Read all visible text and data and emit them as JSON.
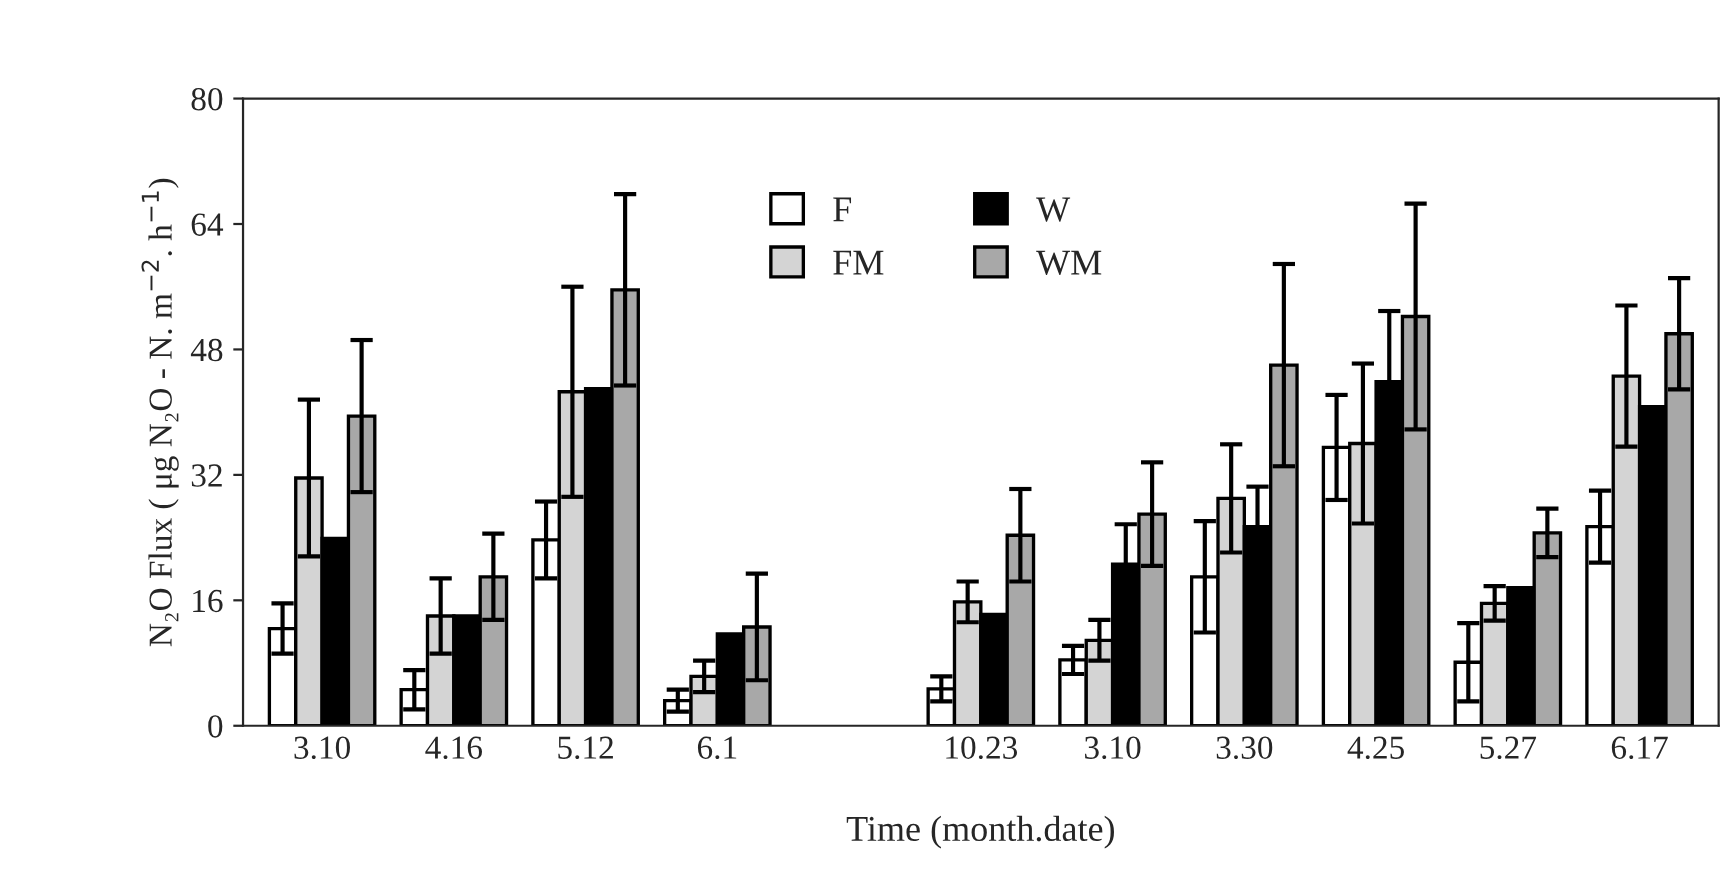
{
  "chart_data": {
    "type": "bar",
    "xlabel": "Time (month.date)",
    "ylabel": "N₂O Flux ( μg N₂O - N. m$^{−2}$. h$^{−1}$)",
    "categories": [
      "3.10",
      "4.16",
      "5.12",
      "6.1",
      null,
      "10.23",
      "3.10",
      "3.30",
      "4.25",
      "5.27",
      "6.17"
    ],
    "series": [
      {
        "name": "F",
        "color": "#ffffff",
        "values": [
          12.4,
          4.6,
          23.7,
          3.2,
          null,
          4.7,
          8.4,
          19.0,
          35.5,
          8.1,
          25.4
        ],
        "errors": [
          3.2,
          2.5,
          4.9,
          1.4,
          null,
          1.6,
          1.8,
          7.1,
          6.7,
          5.0,
          4.6
        ]
      },
      {
        "name": "FM",
        "color": "#d4d4d4",
        "values": [
          31.6,
          14.0,
          42.6,
          6.3,
          null,
          15.8,
          10.9,
          29.0,
          36.0,
          15.6,
          44.6
        ],
        "errors": [
          10.0,
          4.8,
          13.4,
          2.0,
          null,
          2.6,
          2.6,
          6.9,
          10.2,
          2.2,
          9.0
        ]
      },
      {
        "name": "W",
        "color": "#000000",
        "values": [
          23.9,
          14.0,
          43.0,
          11.7,
          null,
          14.2,
          20.6,
          25.4,
          43.9,
          17.6,
          40.7
        ],
        "errors": [
          null,
          null,
          null,
          null,
          null,
          null,
          5.1,
          5.1,
          9.0,
          null,
          null
        ]
      },
      {
        "name": "WM",
        "color": "#a8a8a8",
        "values": [
          39.5,
          19.0,
          55.6,
          12.6,
          null,
          24.3,
          27.0,
          46.0,
          52.2,
          24.6,
          50.0
        ],
        "errors": [
          9.7,
          5.5,
          12.2,
          6.8,
          null,
          5.9,
          6.6,
          12.9,
          14.4,
          3.1,
          7.1
        ]
      }
    ],
    "ylim": [
      0,
      80
    ],
    "yticks": [
      0,
      16,
      32,
      48,
      64,
      80
    ],
    "grid": false,
    "legend": "top"
  }
}
